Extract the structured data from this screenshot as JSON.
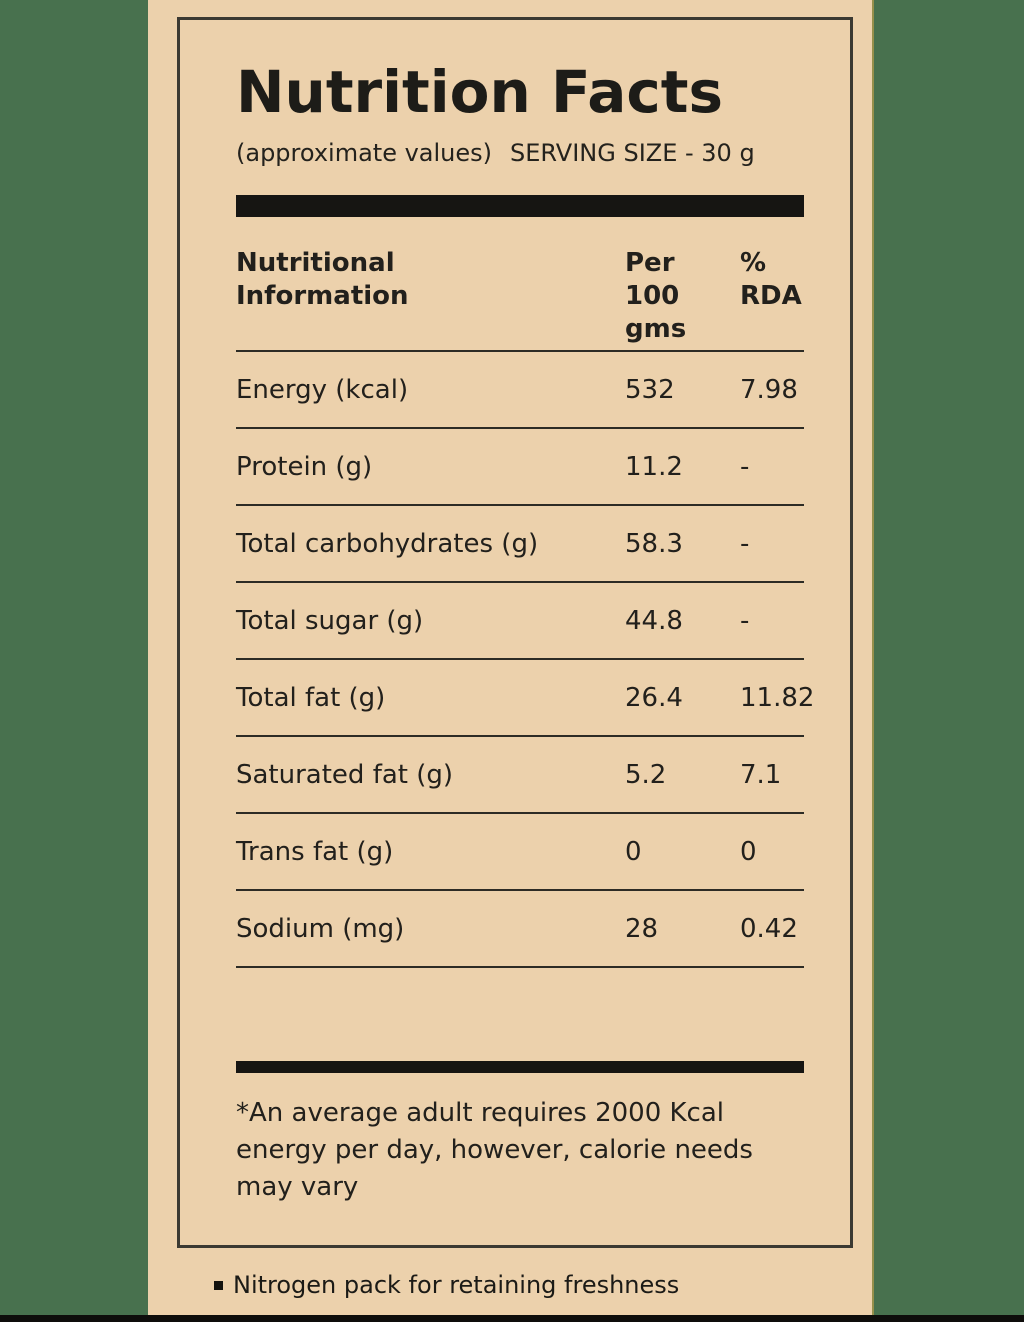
{
  "colors": {
    "background_green": "#48714e",
    "panel_tan": "#ecd1ac",
    "ink": "#22201c",
    "bar_black": "#161512",
    "boundary_olive_line": "#96904c"
  },
  "header": {
    "title": "Nutrition Facts",
    "approx_note": "(approximate values)",
    "serving_size": "SERVING SIZE - 30 g"
  },
  "table": {
    "columns": [
      "Nutritional\nInformation",
      "Per\n100\ngms",
      "%\nRDA"
    ],
    "rows": [
      {
        "name": "Energy (kcal)",
        "per_100_gms": "532",
        "rda_percent": "7.98"
      },
      {
        "name": "Protein (g)",
        "per_100_gms": "11.2",
        "rda_percent": "-"
      },
      {
        "name": "Total carbohydrates (g)",
        "per_100_gms": "58.3",
        "rda_percent": "-"
      },
      {
        "name": "Total sugar (g)",
        "per_100_gms": "44.8",
        "rda_percent": "-"
      },
      {
        "name": "Total fat (g)",
        "per_100_gms": "26.4",
        "rda_percent": "11.82"
      },
      {
        "name": "Saturated fat (g)",
        "per_100_gms": "5.2",
        "rda_percent": "7.1"
      },
      {
        "name": "Trans fat (g)",
        "per_100_gms": "0",
        "rda_percent": "0"
      },
      {
        "name": "Sodium (mg)",
        "per_100_gms": "28",
        "rda_percent": "0.42"
      }
    ]
  },
  "footnote": "*An average adult requires 2000 Kcal energy per day, however, calorie needs may vary",
  "bottom_note": "Nitrogen pack for retaining freshness"
}
